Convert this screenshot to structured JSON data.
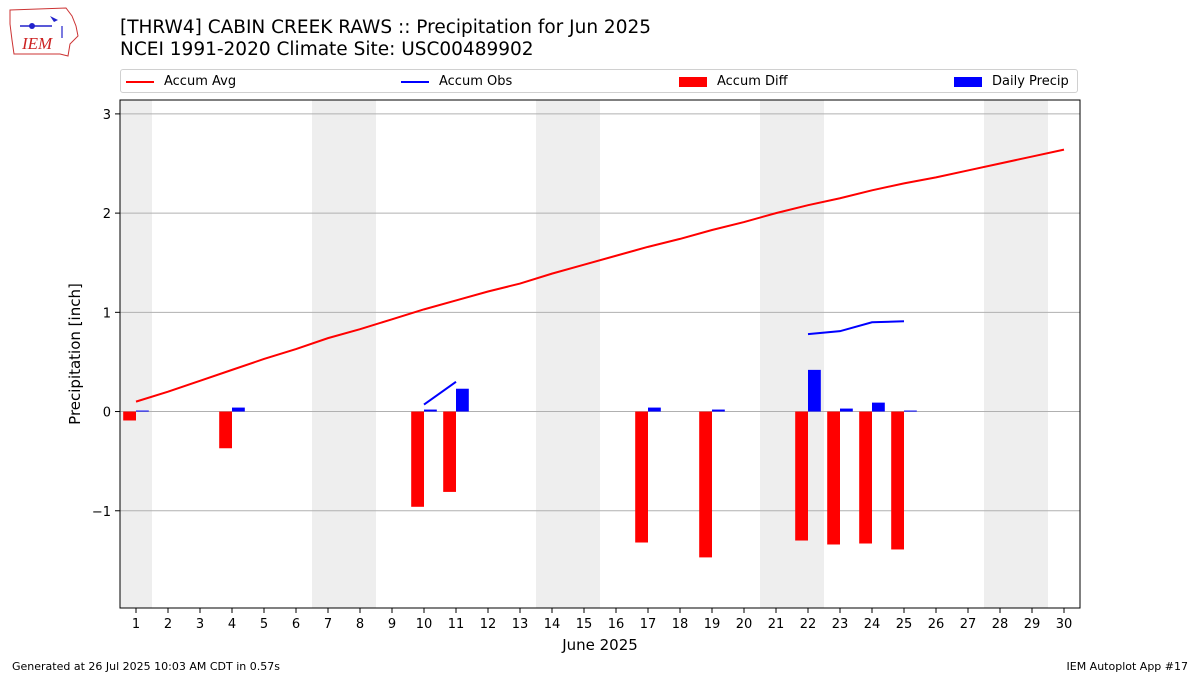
{
  "title": {
    "line1": "[THRW4] CABIN CREEK RAWS :: Precipitation for Jun 2025",
    "line2": "NCEI 1991-2020 Climate Site: USC00489902"
  },
  "logo": {
    "text": "IEM"
  },
  "footer": {
    "left": "Generated at 26 Jul 2025 10:03 AM CDT in 0.57s",
    "right": "IEM Autoplot App #17"
  },
  "colors": {
    "avg": "#ff0000",
    "obs": "#0000ff",
    "diff": "#ff0000",
    "daily": "#0000ff",
    "weekend_band": "#eeeeee",
    "grid": "#b0b0b0"
  },
  "chart_data": {
    "type": "bar",
    "xlabel": "June 2025",
    "ylabel": "Precipitation [inch]",
    "xlim": [
      0.5,
      30.5
    ],
    "ylim": [
      -1.98,
      3.14
    ],
    "yticks": [
      -1,
      0,
      1,
      2,
      3
    ],
    "ytick_labels": [
      "−1",
      "0",
      "1",
      "2",
      "3"
    ],
    "x": [
      1,
      2,
      3,
      4,
      5,
      6,
      7,
      8,
      9,
      10,
      11,
      12,
      13,
      14,
      15,
      16,
      17,
      18,
      19,
      20,
      21,
      22,
      23,
      24,
      25,
      26,
      27,
      28,
      29,
      30
    ],
    "grid": true,
    "legend_position": "top, above plot",
    "weekend_days": [
      1,
      7,
      8,
      14,
      15,
      21,
      22,
      28,
      29
    ],
    "series": [
      {
        "name": "Accum Avg",
        "kind": "line",
        "values": [
          0.1,
          0.2,
          0.31,
          0.42,
          0.53,
          0.63,
          0.74,
          0.83,
          0.93,
          1.03,
          1.12,
          1.21,
          1.29,
          1.39,
          1.48,
          1.57,
          1.66,
          1.74,
          1.83,
          1.91,
          2.0,
          2.08,
          2.15,
          2.23,
          2.3,
          2.36,
          2.43,
          2.5,
          2.57,
          2.64
        ]
      },
      {
        "name": "Accum Obs",
        "kind": "line",
        "values": [
          null,
          null,
          null,
          null,
          null,
          null,
          null,
          null,
          null,
          0.07,
          0.3,
          null,
          null,
          null,
          null,
          null,
          null,
          null,
          null,
          null,
          null,
          0.78,
          0.81,
          0.9,
          0.91,
          null,
          null,
          null,
          null,
          null
        ]
      },
      {
        "name": "Accum Diff",
        "kind": "bar",
        "values": [
          -0.09,
          null,
          null,
          -0.37,
          null,
          null,
          null,
          null,
          null,
          -0.96,
          -0.81,
          null,
          null,
          null,
          null,
          null,
          -1.32,
          null,
          -1.47,
          null,
          null,
          -1.3,
          -1.34,
          -1.33,
          -1.39,
          null,
          null,
          null,
          null,
          null
        ]
      },
      {
        "name": "Daily Precip",
        "kind": "bar",
        "values": [
          0.01,
          null,
          null,
          0.04,
          null,
          null,
          null,
          null,
          null,
          0.02,
          0.23,
          null,
          null,
          null,
          null,
          null,
          0.04,
          null,
          0.02,
          null,
          null,
          0.42,
          0.03,
          0.09,
          0.01,
          null,
          null,
          null,
          null,
          null
        ]
      }
    ]
  }
}
